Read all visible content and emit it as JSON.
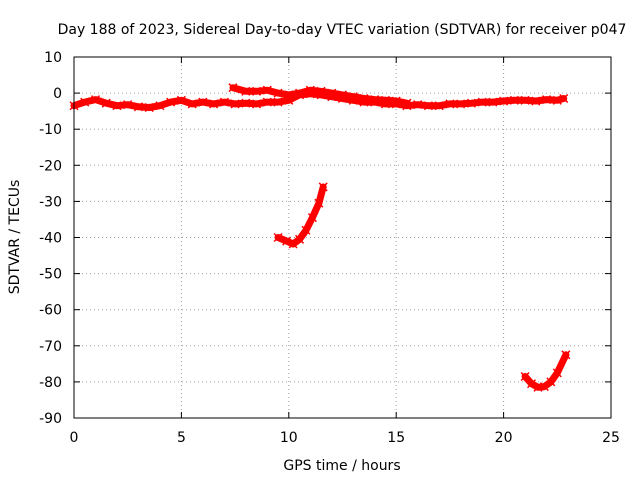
{
  "chart_data": {
    "type": "scatter",
    "title": "Day 188 of 2023, Sidereal Day-to-day VTEC variation (SDTVAR) for receiver p047",
    "xlabel": "GPS time / hours",
    "ylabel": "SDTVAR / TECUs",
    "xlim": [
      0,
      25
    ],
    "ylim": [
      -90,
      10
    ],
    "xticks": [
      0,
      5,
      10,
      15,
      20,
      25
    ],
    "yticks": [
      10,
      0,
      -10,
      -20,
      -30,
      -40,
      -50,
      -60,
      -70,
      -80,
      -90
    ],
    "grid": true,
    "color": "#ff0000",
    "series": [
      {
        "name": "arc-main-lower",
        "points": [
          [
            0.0,
            -3.5
          ],
          [
            0.5,
            -2.5
          ],
          [
            1.0,
            -1.8
          ],
          [
            1.5,
            -2.8
          ],
          [
            2.0,
            -3.5
          ],
          [
            2.5,
            -3.2
          ],
          [
            3.0,
            -3.8
          ],
          [
            3.5,
            -4.0
          ],
          [
            4.0,
            -3.5
          ],
          [
            4.5,
            -2.5
          ],
          [
            5.0,
            -2.0
          ],
          [
            5.5,
            -3.0
          ],
          [
            6.0,
            -2.5
          ],
          [
            6.5,
            -3.0
          ],
          [
            7.0,
            -2.5
          ],
          [
            7.5,
            -3.0
          ],
          [
            8.0,
            -2.8
          ],
          [
            8.5,
            -3.0
          ],
          [
            9.0,
            -2.5
          ],
          [
            9.5,
            -2.5
          ],
          [
            10.0,
            -2.0
          ],
          [
            10.5,
            -0.5
          ],
          [
            11.0,
            -0.2
          ],
          [
            11.5,
            -0.5
          ],
          [
            12.0,
            -1.0
          ],
          [
            12.5,
            -1.5
          ],
          [
            13.0,
            -2.0
          ],
          [
            13.5,
            -2.5
          ],
          [
            14.0,
            -2.5
          ],
          [
            14.5,
            -3.0
          ],
          [
            15.0,
            -3.0
          ],
          [
            15.5,
            -3.5
          ],
          [
            16.0,
            -3.2
          ],
          [
            16.5,
            -3.5
          ],
          [
            17.0,
            -3.5
          ],
          [
            17.5,
            -3.0
          ],
          [
            18.0,
            -3.0
          ],
          [
            18.5,
            -2.8
          ],
          [
            19.0,
            -2.5
          ],
          [
            19.5,
            -2.5
          ],
          [
            20.0,
            -2.2
          ],
          [
            20.5,
            -2.0
          ],
          [
            21.0,
            -2.0
          ],
          [
            21.5,
            -2.2
          ],
          [
            22.0,
            -1.8
          ],
          [
            22.5,
            -2.0
          ],
          [
            22.8,
            -1.5
          ]
        ]
      },
      {
        "name": "arc-main-upper",
        "points": [
          [
            7.4,
            1.5
          ],
          [
            8.0,
            0.5
          ],
          [
            8.5,
            0.5
          ],
          [
            9.0,
            0.8
          ],
          [
            9.5,
            0.0
          ],
          [
            10.0,
            -0.5
          ],
          [
            10.5,
            0.0
          ],
          [
            11.0,
            0.8
          ],
          [
            11.5,
            0.5
          ],
          [
            12.0,
            0.0
          ],
          [
            12.5,
            -0.5
          ],
          [
            13.0,
            -1.0
          ],
          [
            13.5,
            -1.5
          ],
          [
            14.0,
            -1.8
          ],
          [
            14.5,
            -2.0
          ],
          [
            15.0,
            -2.2
          ],
          [
            15.5,
            -2.8
          ]
        ]
      },
      {
        "name": "arc-mid",
        "points": [
          [
            9.5,
            -40.0
          ],
          [
            9.9,
            -41.0
          ],
          [
            10.2,
            -41.8
          ],
          [
            10.5,
            -40.5
          ],
          [
            10.8,
            -38.0
          ],
          [
            11.1,
            -34.5
          ],
          [
            11.4,
            -30.5
          ],
          [
            11.6,
            -26.0
          ]
        ]
      },
      {
        "name": "arc-bottom",
        "points": [
          [
            21.0,
            -78.5
          ],
          [
            21.3,
            -80.5
          ],
          [
            21.6,
            -81.5
          ],
          [
            21.9,
            -81.3
          ],
          [
            22.2,
            -80.0
          ],
          [
            22.5,
            -77.5
          ],
          [
            22.9,
            -72.5
          ]
        ]
      }
    ]
  }
}
